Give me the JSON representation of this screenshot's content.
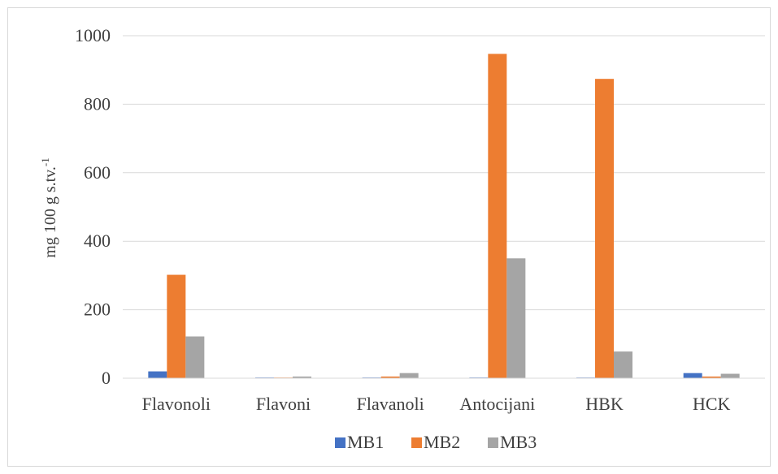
{
  "chart_data": {
    "type": "bar",
    "categories": [
      "Flavonoli",
      "Flavoni",
      "Flavanoli",
      "Antocijani",
      "HBK",
      "HCK"
    ],
    "series": [
      {
        "name": "MB1",
        "color": "#4472c4",
        "values": [
          20,
          2,
          2,
          2,
          1,
          15
        ]
      },
      {
        "name": "MB2",
        "color": "#ed7d31",
        "values": [
          302,
          1,
          5,
          947,
          874,
          5
        ]
      },
      {
        "name": "MB3",
        "color": "#a5a5a5",
        "values": [
          122,
          5,
          15,
          350,
          78,
          13
        ]
      }
    ],
    "ylabel": "mg 100 g s.tv.",
    "ylabel_superscript": "-1",
    "ylim": [
      0,
      1000
    ],
    "yticks": [
      "0",
      "200",
      "400",
      "600",
      "800",
      "1000"
    ],
    "grid": true,
    "legend_position": "bottom"
  }
}
